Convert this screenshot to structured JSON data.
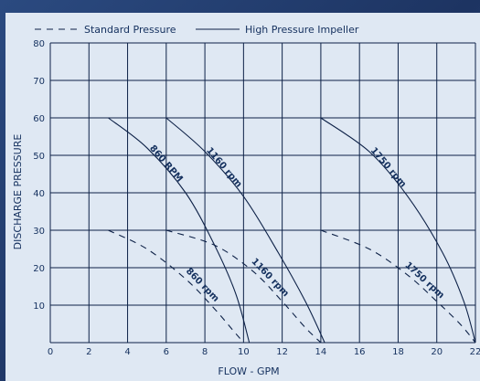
{
  "chart_data": {
    "type": "line",
    "title": "",
    "xlabel": "FLOW - GPM",
    "ylabel": "DISCHARGE PRESSURE",
    "xlim": [
      0,
      22
    ],
    "ylim": [
      0,
      80
    ],
    "xticks": [
      0,
      2,
      4,
      6,
      8,
      10,
      12,
      14,
      16,
      18,
      20,
      22
    ],
    "yticks": [
      10,
      20,
      30,
      40,
      50,
      60,
      70,
      80
    ],
    "grid": true,
    "legend_position": "top-left",
    "legend": [
      {
        "label": "Standard Pressure",
        "style": "dashed"
      },
      {
        "label": "High Pressure Impeller",
        "style": "solid"
      }
    ],
    "series": [
      {
        "name": "Standard Pressure",
        "label": "860 rpm",
        "style": "dashed",
        "x": [
          3.0,
          5.0,
          7.0,
          8.5,
          9.5,
          10.0
        ],
        "y": [
          30,
          25,
          17,
          9,
          3,
          0
        ]
      },
      {
        "name": "Standard Pressure",
        "label": "1160 rpm",
        "style": "dashed",
        "x": [
          6.0,
          8.5,
          10.5,
          12.0,
          13.2,
          14.0
        ],
        "y": [
          30,
          26,
          19,
          11,
          4,
          0
        ]
      },
      {
        "name": "Standard Pressure",
        "label": "1750 rpm",
        "style": "dashed",
        "x": [
          14.0,
          16.5,
          18.5,
          20.0,
          21.2,
          22.0
        ],
        "y": [
          30,
          25,
          18,
          11,
          5,
          0
        ]
      },
      {
        "name": "High Pressure Impeller",
        "label": "860 RPM",
        "style": "solid",
        "x": [
          3.0,
          5.0,
          7.0,
          8.5,
          9.6,
          10.3
        ],
        "y": [
          60,
          52,
          40,
          26,
          13,
          0
        ]
      },
      {
        "name": "High Pressure Impeller",
        "label": "1160 rpm",
        "style": "solid",
        "x": [
          6.0,
          8.0,
          10.0,
          11.8,
          13.2,
          14.2
        ],
        "y": [
          60,
          51,
          39,
          24,
          11,
          0
        ]
      },
      {
        "name": "High Pressure Impeller",
        "label": "1750 rpm",
        "style": "solid",
        "x": [
          14.0,
          16.5,
          18.5,
          20.3,
          21.4,
          22.0
        ],
        "y": [
          60,
          51,
          39,
          24,
          11,
          0
        ]
      }
    ]
  }
}
